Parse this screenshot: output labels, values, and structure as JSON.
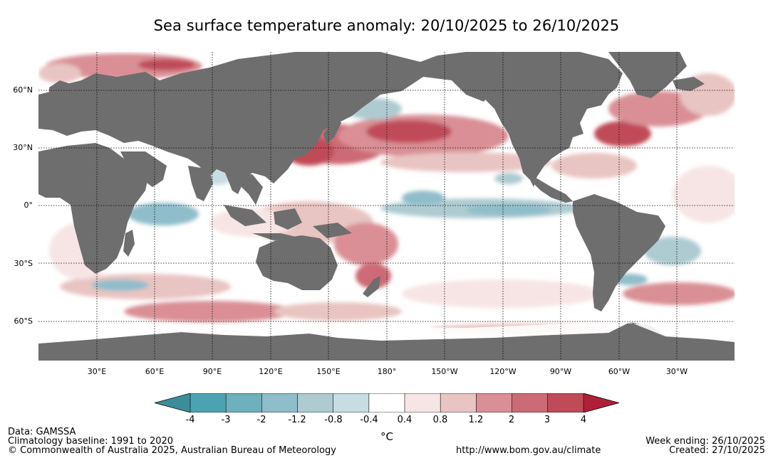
{
  "title": "Sea surface temperature anomaly: 20/10/2025 to 26/10/2025",
  "map": {
    "projection": "equirectangular",
    "lat_ticks": [
      "60°N",
      "30°N",
      "0°",
      "30°S",
      "60°S"
    ],
    "lon_ticks": [
      "30°E",
      "60°E",
      "90°E",
      "120°E",
      "150°E",
      "180°",
      "150°W",
      "120°W",
      "90°W",
      "60°W",
      "30°W"
    ],
    "land_color": "#6e6e6e",
    "ice_color": "#ffffff",
    "gridlines": "dotted"
  },
  "colorbar": {
    "unit": "°C",
    "labels": [
      "-4",
      "-3",
      "-2",
      "-1.2",
      "-0.8",
      "-0.4",
      "0.4",
      "0.8",
      "1.2",
      "2",
      "3",
      "4"
    ],
    "colors": [
      "#3c8d9a",
      "#4ba3b2",
      "#6fb0bd",
      "#8fbdca",
      "#aecbd2",
      "#c6dde2",
      "#ffffff",
      "#f6e5e4",
      "#e8c4c2",
      "#d98f95",
      "#cc6b75",
      "#c04b58",
      "#b01f38"
    ],
    "extend": "both"
  },
  "footer": {
    "data_source": "Data: GAMSSA",
    "baseline": "Climatology baseline: 1991 to 2020",
    "copyright": "© Commonwealth of Australia 2025, Australian Bureau of Meteorology",
    "url": "http://www.bom.gov.au/climate",
    "week_ending": "Week ending: 26/10/2025",
    "created": "Created: 27/10/2025"
  }
}
